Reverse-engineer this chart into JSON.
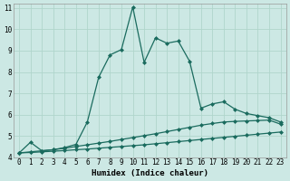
{
  "xlabel": "Humidex (Indice chaleur)",
  "background_color": "#cce8e4",
  "grid_color": "#b0d5cc",
  "line_color": "#1a6b5e",
  "xlim": [
    -0.5,
    23.5
  ],
  "ylim": [
    4,
    11.2
  ],
  "yticks": [
    4,
    5,
    6,
    7,
    8,
    9,
    10,
    11
  ],
  "xticks": [
    0,
    1,
    2,
    3,
    4,
    5,
    6,
    7,
    8,
    9,
    10,
    11,
    12,
    13,
    14,
    15,
    16,
    17,
    18,
    19,
    20,
    21,
    22,
    23
  ],
  "line1_x": [
    0,
    1,
    2,
    3,
    4,
    5,
    6,
    7,
    8,
    9,
    10,
    11,
    12,
    13,
    14,
    15,
    16,
    17,
    18,
    19,
    20,
    21,
    22,
    23
  ],
  "line1_y": [
    4.2,
    4.7,
    4.3,
    4.35,
    4.45,
    4.6,
    5.65,
    7.75,
    8.8,
    9.05,
    11.05,
    8.45,
    9.6,
    9.35,
    9.45,
    8.5,
    6.3,
    6.5,
    6.6,
    6.25,
    6.05,
    5.95,
    5.85,
    5.65
  ],
  "line2_x": [
    0,
    1,
    2,
    3,
    4,
    5,
    6,
    7,
    8,
    9,
    10,
    11,
    12,
    13,
    14,
    15,
    16,
    17,
    18,
    19,
    20,
    21,
    22,
    23
  ],
  "line2_y": [
    4.2,
    4.25,
    4.3,
    4.35,
    4.42,
    4.5,
    4.58,
    4.66,
    4.74,
    4.83,
    4.92,
    5.01,
    5.1,
    5.2,
    5.3,
    5.4,
    5.5,
    5.58,
    5.65,
    5.68,
    5.7,
    5.72,
    5.74,
    5.55
  ],
  "line3_x": [
    0,
    1,
    2,
    3,
    4,
    5,
    6,
    7,
    8,
    9,
    10,
    11,
    12,
    13,
    14,
    15,
    16,
    17,
    18,
    19,
    20,
    21,
    22,
    23
  ],
  "line3_y": [
    4.2,
    4.22,
    4.25,
    4.28,
    4.31,
    4.35,
    4.38,
    4.42,
    4.46,
    4.5,
    4.54,
    4.58,
    4.63,
    4.68,
    4.73,
    4.78,
    4.83,
    4.88,
    4.93,
    4.98,
    5.03,
    5.08,
    5.13,
    5.18
  ],
  "marker": "D",
  "marker_size": 2.0,
  "line_width": 0.9,
  "xlabel_fontsize": 6.5,
  "tick_fontsize": 5.5
}
